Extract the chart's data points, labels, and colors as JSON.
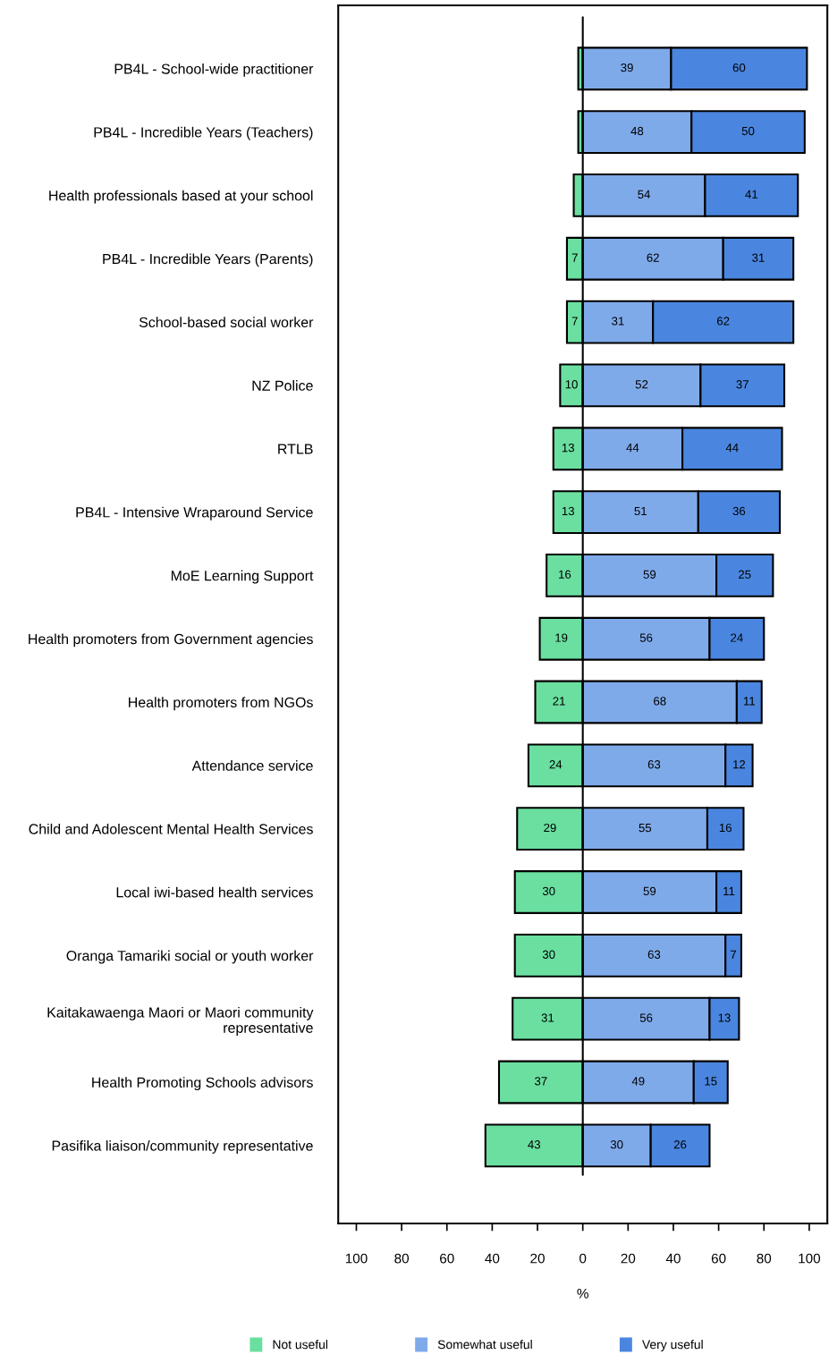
{
  "chart_data": {
    "type": "bar",
    "orientation": "horizontal",
    "stacked": true,
    "categories": [
      "PB4L - School-wide practitioner",
      "PB4L - Incredible Years (Teachers)",
      "Health professionals based at your school",
      "PB4L - Incredible Years (Parents)",
      "School-based social worker",
      "NZ Police",
      "RTLB",
      "PB4L - Intensive Wraparound Service",
      "MoE Learning Support",
      "Health promoters from Government agencies",
      "Health promoters from NGOs",
      "Attendance service",
      "Child and Adolescent Mental Health Services",
      "Local iwi-based health services",
      "Oranga Tamariki social or youth worker",
      "Kaitakawaenga Maori or Maori community representative",
      "Health Promoting Schools advisors",
      "Pasifika liaison/community representative"
    ],
    "series": [
      {
        "name": "Not useful",
        "color": "#6adfa0",
        "base": [
          -2,
          -2,
          -4,
          -7,
          -7,
          -10,
          -13,
          -13,
          -16,
          -19,
          -21,
          -24,
          -29,
          -30,
          -30,
          -31,
          -37,
          -43
        ],
        "values": [
          2,
          2,
          4,
          7,
          7,
          10,
          13,
          13,
          16,
          19,
          21,
          24,
          29,
          30,
          30,
          31,
          37,
          43
        ],
        "value_labels": [
          null,
          null,
          null,
          "7",
          "7",
          "10",
          "13",
          "13",
          "16",
          "19",
          "21",
          "24",
          "29",
          "30",
          "30",
          "31",
          "37",
          "43"
        ]
      },
      {
        "name": "Somewhat useful",
        "color": "#7faaea",
        "values": [
          39,
          48,
          54,
          62,
          31,
          52,
          44,
          51,
          59,
          56,
          68,
          63,
          55,
          59,
          63,
          56,
          49,
          30
        ],
        "value_labels": [
          "39",
          "48",
          "54",
          "62",
          "31",
          "52",
          "44",
          "51",
          "59",
          "56",
          "68",
          "63",
          "55",
          "59",
          "63",
          "56",
          "49",
          "30"
        ]
      },
      {
        "name": "Very useful",
        "color": "#4a86df",
        "values": [
          60,
          50,
          41,
          31,
          62,
          37,
          44,
          36,
          25,
          24,
          11,
          12,
          16,
          11,
          7,
          13,
          15,
          26
        ],
        "value_labels": [
          "60",
          "50",
          "41",
          "31",
          "62",
          "37",
          "44",
          "36",
          "25",
          "24",
          "11",
          "12",
          "16",
          "11",
          "7",
          "13",
          "15",
          "26"
        ]
      }
    ],
    "xlabel": "%",
    "xlim": [
      -108,
      108
    ],
    "xticks": [
      {
        "value": -100,
        "label": "100"
      },
      {
        "value": -80,
        "label": "80"
      },
      {
        "value": -60,
        "label": "60"
      },
      {
        "value": -40,
        "label": "40"
      },
      {
        "value": -20,
        "label": "20"
      },
      0,
      20,
      40,
      60,
      80,
      100
    ],
    "ref_lines": [
      {
        "axis": "x",
        "value": 0
      }
    ],
    "grid": false,
    "legend": "bottom"
  }
}
